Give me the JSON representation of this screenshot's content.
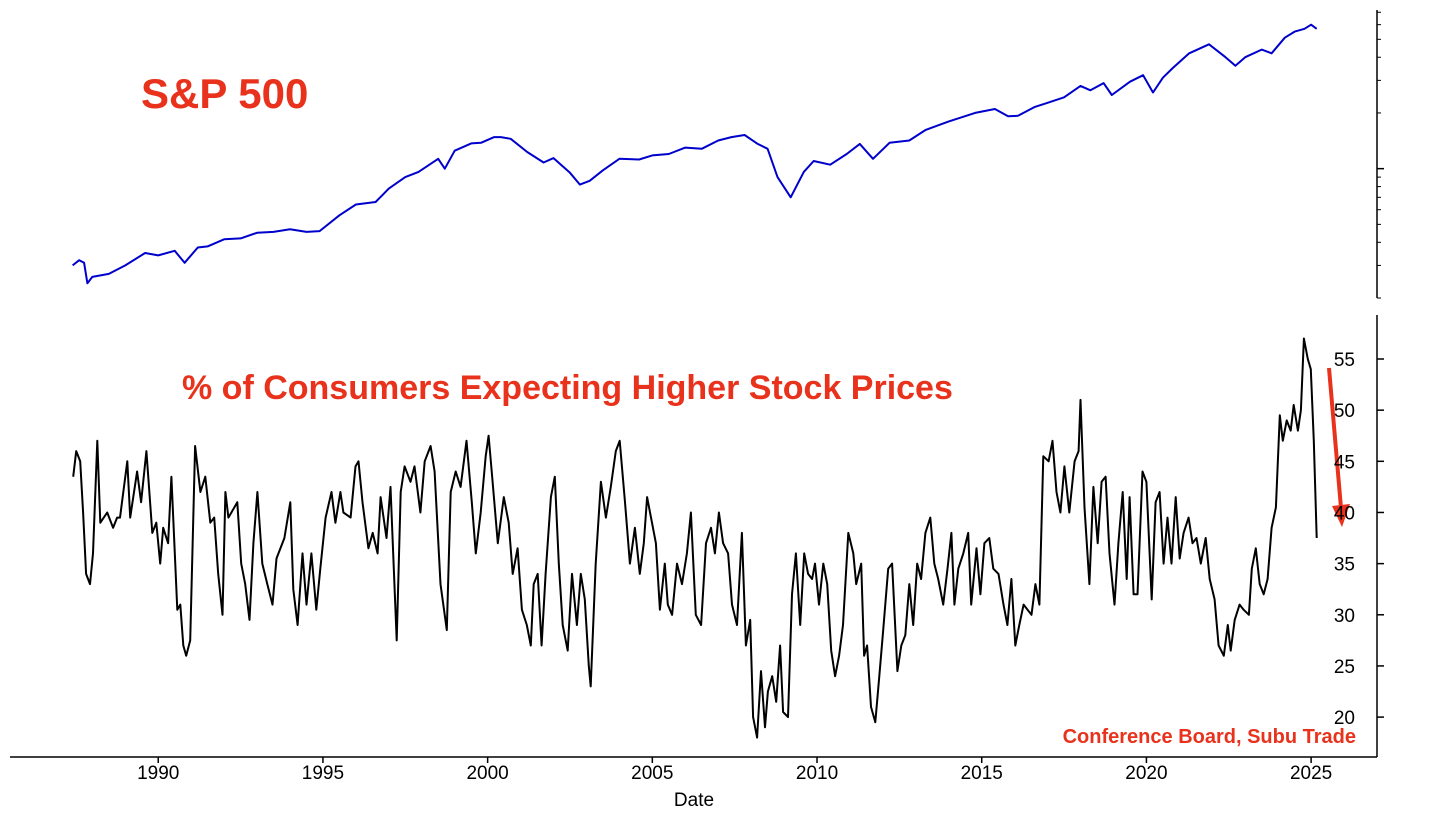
{
  "chart_data": [
    {
      "type": "line",
      "title": "S&P 500",
      "log_y": true,
      "ytick_labels": false,
      "xlim": [
        1985.5,
        2027.0
      ],
      "ylim": [
        200,
        7200
      ],
      "yticks": [
        1000
      ],
      "minor_yticks": [
        200,
        300,
        400,
        500,
        600,
        700,
        800,
        900,
        2000,
        3000,
        4000,
        5000,
        6000,
        7000
      ],
      "x": [
        1987.4,
        1987.6,
        1987.75,
        1987.85,
        1988.0,
        1988.5,
        1989.0,
        1989.6,
        1990.0,
        1990.5,
        1990.8,
        1991.2,
        1991.5,
        1992.0,
        1992.5,
        1993.0,
        1993.5,
        1994.0,
        1994.5,
        1994.9,
        1995.5,
        1996.0,
        1996.6,
        1997.0,
        1997.5,
        1997.9,
        1998.5,
        1998.7,
        1999.0,
        1999.5,
        1999.8,
        2000.2,
        2000.4,
        2000.7,
        2001.2,
        2001.7,
        2002.0,
        2002.5,
        2002.8,
        2003.1,
        2003.5,
        2004.0,
        2004.6,
        2005.0,
        2005.5,
        2006.0,
        2006.5,
        2007.0,
        2007.4,
        2007.8,
        2008.2,
        2008.5,
        2008.8,
        2009.2,
        2009.6,
        2009.9,
        2010.4,
        2010.9,
        2011.3,
        2011.7,
        2012.2,
        2012.8,
        2013.3,
        2014.0,
        2014.8,
        2015.4,
        2015.8,
        2016.1,
        2016.6,
        2017.0,
        2017.5,
        2018.0,
        2018.3,
        2018.7,
        2018.95,
        2019.5,
        2019.9,
        2020.2,
        2020.5,
        2020.8,
        2021.3,
        2021.9,
        2022.4,
        2022.7,
        2023.0,
        2023.5,
        2023.8,
        2024.2,
        2024.5,
        2024.8,
        2025.0,
        2025.17
      ],
      "series": [
        {
          "name": "S&P 500",
          "color": "#0000cc",
          "values": [
            300,
            320,
            310,
            240,
            260,
            270,
            300,
            350,
            340,
            360,
            310,
            375,
            380,
            415,
            420,
            450,
            455,
            470,
            455,
            460,
            560,
            640,
            660,
            780,
            900,
            960,
            1130,
            1000,
            1250,
            1370,
            1380,
            1480,
            1480,
            1450,
            1230,
            1080,
            1140,
            950,
            820,
            860,
            980,
            1130,
            1120,
            1180,
            1200,
            1300,
            1280,
            1420,
            1480,
            1520,
            1360,
            1280,
            900,
            700,
            960,
            1100,
            1050,
            1200,
            1360,
            1130,
            1380,
            1420,
            1620,
            1800,
            2000,
            2100,
            1920,
            1930,
            2150,
            2270,
            2430,
            2800,
            2650,
            2900,
            2500,
            2950,
            3200,
            2580,
            3100,
            3500,
            4200,
            4700,
            4000,
            3600,
            4000,
            4400,
            4200,
            5100,
            5500,
            5700,
            6000,
            5700
          ]
        }
      ]
    },
    {
      "type": "line",
      "title": "% of Consumers Expecting Higher Stock Prices",
      "xlabel": "Date",
      "annotation": "Conference Board, Subu Trade",
      "xlim": [
        1985.5,
        2027.0
      ],
      "ylim": [
        16.1,
        59.3
      ],
      "xticks": [
        1990,
        1995,
        2000,
        2005,
        2010,
        2015,
        2020,
        2025
      ],
      "yticks": [
        20,
        25,
        30,
        35,
        40,
        45,
        50,
        55
      ],
      "x": [
        1987.42,
        1987.51,
        1987.63,
        1987.72,
        1987.81,
        1987.93,
        1988.02,
        1988.15,
        1988.24,
        1988.45,
        1988.63,
        1988.75,
        1988.84,
        1989.06,
        1989.15,
        1989.36,
        1989.48,
        1989.64,
        1989.82,
        1989.94,
        1990.06,
        1990.15,
        1990.3,
        1990.4,
        1990.58,
        1990.67,
        1990.76,
        1990.85,
        1990.97,
        1991.12,
        1991.28,
        1991.43,
        1991.58,
        1991.7,
        1991.82,
        1991.95,
        1992.04,
        1992.13,
        1992.22,
        1992.4,
        1992.52,
        1992.64,
        1992.77,
        1992.89,
        1993.01,
        1993.16,
        1993.31,
        1993.47,
        1993.59,
        1993.83,
        1994.01,
        1994.1,
        1994.23,
        1994.38,
        1994.5,
        1994.65,
        1994.8,
        1994.92,
        1995.08,
        1995.26,
        1995.38,
        1995.53,
        1995.62,
        1995.84,
        1995.99,
        1996.08,
        1996.2,
        1996.38,
        1996.51,
        1996.66,
        1996.75,
        1996.93,
        1997.05,
        1997.24,
        1997.36,
        1997.48,
        1997.66,
        1997.78,
        1997.96,
        1998.09,
        1998.27,
        1998.39,
        1998.57,
        1998.76,
        1998.88,
        1999.03,
        1999.18,
        1999.36,
        1999.52,
        1999.64,
        1999.79,
        1999.94,
        2000.03,
        2000.15,
        2000.31,
        2000.49,
        2000.64,
        2000.76,
        2000.91,
        2001.04,
        2001.19,
        2001.31,
        2001.4,
        2001.52,
        2001.64,
        2001.76,
        2001.92,
        2002.04,
        2002.16,
        2002.28,
        2002.43,
        2002.56,
        2002.71,
        2002.83,
        2002.95,
        2003.07,
        2003.13,
        2003.28,
        2003.44,
        2003.59,
        2003.74,
        2003.89,
        2004.01,
        2004.17,
        2004.32,
        2004.47,
        2004.62,
        2004.74,
        2004.84,
        2004.96,
        2005.11,
        2005.23,
        2005.38,
        2005.47,
        2005.6,
        2005.75,
        2005.9,
        2006.05,
        2006.17,
        2006.32,
        2006.48,
        2006.63,
        2006.78,
        2006.9,
        2007.02,
        2007.15,
        2007.3,
        2007.42,
        2007.57,
        2007.72,
        2007.84,
        2007.97,
        2008.06,
        2008.18,
        2008.3,
        2008.42,
        2008.51,
        2008.64,
        2008.76,
        2008.88,
        2008.97,
        2009.12,
        2009.24,
        2009.36,
        2009.49,
        2009.61,
        2009.73,
        2009.85,
        2009.94,
        2010.06,
        2010.19,
        2010.31,
        2010.43,
        2010.55,
        2010.67,
        2010.79,
        2010.95,
        2011.1,
        2011.19,
        2011.34,
        2011.43,
        2011.52,
        2011.64,
        2011.77,
        2011.89,
        2012.01,
        2012.16,
        2012.28,
        2012.44,
        2012.56,
        2012.68,
        2012.8,
        2012.92,
        2013.04,
        2013.16,
        2013.29,
        2013.44,
        2013.56,
        2013.68,
        2013.83,
        2013.96,
        2014.08,
        2014.17,
        2014.29,
        2014.44,
        2014.59,
        2014.68,
        2014.84,
        2014.96,
        2015.08,
        2015.23,
        2015.35,
        2015.51,
        2015.66,
        2015.78,
        2015.9,
        2016.02,
        2016.14,
        2016.27,
        2016.39,
        2016.51,
        2016.63,
        2016.75,
        2016.87,
        2017.03,
        2017.15,
        2017.27,
        2017.39,
        2017.51,
        2017.66,
        2017.82,
        2017.94,
        2018.0,
        2018.12,
        2018.27,
        2018.39,
        2018.52,
        2018.64,
        2018.76,
        2018.88,
        2019.03,
        2019.15,
        2019.28,
        2019.4,
        2019.49,
        2019.61,
        2019.73,
        2019.88,
        2020.0,
        2020.16,
        2020.28,
        2020.4,
        2020.52,
        2020.64,
        2020.76,
        2020.89,
        2021.01,
        2021.13,
        2021.28,
        2021.4,
        2021.52,
        2021.65,
        2021.8,
        2021.92,
        2022.07,
        2022.19,
        2022.35,
        2022.47,
        2022.56,
        2022.68,
        2022.83,
        2022.95,
        2023.11,
        2023.2,
        2023.32,
        2023.44,
        2023.56,
        2023.68,
        2023.8,
        2023.93,
        2024.05,
        2024.14,
        2024.26,
        2024.38,
        2024.47,
        2024.6,
        2024.69,
        2024.78,
        2024.9,
        2024.99,
        2025.08,
        2025.17
      ],
      "series": [
        {
          "name": "% of Consumers Expecting Higher Stock Prices",
          "color": "#000000",
          "values": [
            43.5,
            46,
            45,
            40,
            34,
            33,
            36,
            47,
            39,
            40,
            38.5,
            39.5,
            39.5,
            45,
            39.5,
            44,
            41,
            46,
            38,
            39,
            35,
            38.5,
            37,
            43.5,
            30.5,
            31,
            27,
            26,
            27.5,
            46.5,
            42,
            43.5,
            39,
            39.5,
            34,
            30,
            42,
            39.5,
            40,
            41,
            35,
            33,
            29.5,
            37,
            42,
            35,
            33,
            31,
            35.5,
            37.5,
            41,
            32.5,
            29,
            36,
            31,
            36,
            30.5,
            34.5,
            39.5,
            42,
            39,
            42,
            40,
            39.5,
            44.5,
            45,
            41,
            36.5,
            38,
            36,
            41.5,
            37.5,
            42.5,
            27.5,
            42,
            44.5,
            43,
            44.5,
            40,
            45,
            46.5,
            44,
            33,
            28.5,
            42,
            44,
            42.5,
            47,
            41,
            36,
            40,
            45.5,
            47.5,
            43,
            37,
            41.5,
            39,
            34,
            36.5,
            30.5,
            29,
            27,
            33,
            34,
            27,
            34,
            41.5,
            43.5,
            35,
            29,
            26.5,
            34,
            29,
            34,
            31.5,
            25,
            23,
            35,
            43,
            39.5,
            42.5,
            46,
            47,
            41,
            35,
            38.5,
            34,
            37,
            41.5,
            39.5,
            37,
            30.5,
            35,
            31,
            30,
            35,
            33,
            36,
            40,
            30,
            29,
            37,
            38.5,
            36,
            40,
            37,
            36,
            31,
            29,
            38,
            27,
            29.5,
            20,
            18,
            24.5,
            19,
            22.5,
            24,
            21.5,
            27,
            20.5,
            20,
            32,
            36,
            29,
            36,
            34,
            33.5,
            35,
            31,
            35,
            33,
            26.5,
            24,
            26,
            29,
            38,
            36,
            33,
            35,
            26,
            27,
            21,
            19.5,
            24,
            28.5,
            34.5,
            35,
            24.5,
            27,
            28,
            33,
            29,
            35,
            33.5,
            38,
            39.5,
            35,
            33.5,
            31,
            34.5,
            38,
            31,
            34.5,
            36,
            38,
            31,
            36.5,
            32,
            37,
            37.5,
            34.5,
            34,
            31,
            29,
            33.5,
            27,
            29,
            31,
            30.5,
            30,
            33,
            31,
            45.5,
            45,
            47,
            42,
            40,
            44.5,
            40,
            45,
            46,
            51,
            40.5,
            33,
            42.5,
            37,
            43,
            43.5,
            36,
            31,
            37,
            42,
            33.5,
            41.5,
            32,
            32,
            44,
            43,
            31.5,
            41,
            42,
            35,
            39.5,
            35,
            41.5,
            35.5,
            38,
            39.5,
            37,
            37.5,
            35,
            37.5,
            33.5,
            31.5,
            27,
            26,
            29,
            26.5,
            29.5,
            31,
            30.5,
            30,
            34.5,
            36.5,
            33,
            32,
            33.5,
            38.5,
            40.5,
            49.5,
            47,
            49,
            48,
            50.5,
            48,
            50,
            57,
            55,
            54,
            47,
            37.5
          ]
        }
      ]
    }
  ]
}
